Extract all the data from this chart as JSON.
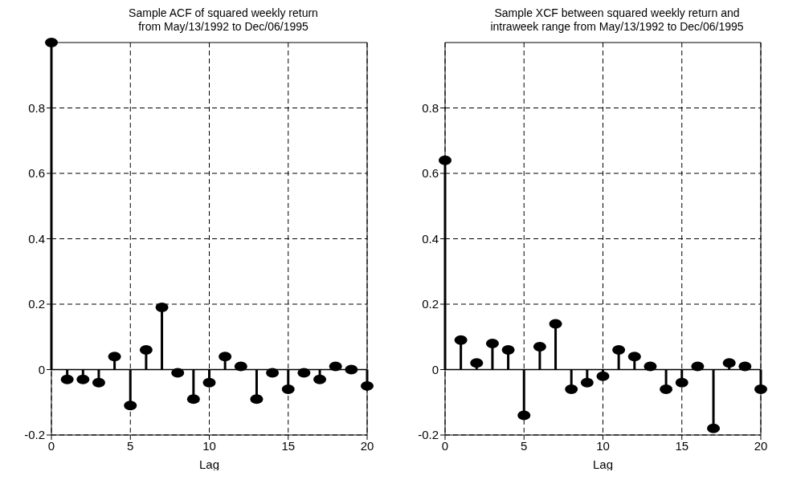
{
  "chart_data": [
    {
      "type": "lollipop",
      "title": "Sample ACF of squared weekly return\nfrom May/13/1992 to Dec/06/1995",
      "xlabel": "Lag",
      "x": [
        0,
        1,
        2,
        3,
        4,
        5,
        6,
        7,
        8,
        9,
        10,
        11,
        12,
        13,
        14,
        15,
        16,
        17,
        18,
        19,
        20
      ],
      "series": [
        {
          "color": "#000000",
          "values": [
            1.0,
            -0.03,
            -0.03,
            -0.04,
            0.04,
            -0.11,
            0.06,
            0.19,
            -0.01,
            -0.09,
            -0.04,
            0.04,
            0.01,
            -0.09,
            -0.01,
            -0.06,
            -0.01,
            -0.03,
            0.01,
            0.0,
            -0.05
          ]
        }
      ],
      "xlim": [
        0,
        20
      ],
      "xticks": [
        0,
        5,
        10,
        15,
        20
      ],
      "ylim": [
        -0.2,
        1
      ],
      "yticks": [
        -0.2,
        0,
        0.2,
        0.4,
        0.6,
        0.8
      ],
      "grid": true,
      "marker": "circle",
      "line_style": "solid",
      "ref_lines": [
        {
          "axis": "y",
          "value": 0,
          "color": "#000000"
        }
      ]
    },
    {
      "type": "lollipop",
      "title": "Sample XCF between squared weekly return and\nintraweek range from May/13/1992  to Dec/06/1995",
      "xlabel": "Lag",
      "x": [
        0,
        1,
        2,
        3,
        4,
        5,
        6,
        7,
        8,
        9,
        10,
        11,
        12,
        13,
        14,
        15,
        16,
        17,
        18,
        19,
        20
      ],
      "series": [
        {
          "color": "#000000",
          "values": [
            0.64,
            0.09,
            0.02,
            0.08,
            0.06,
            -0.14,
            0.07,
            0.14,
            -0.06,
            -0.04,
            -0.02,
            0.06,
            0.04,
            0.01,
            -0.06,
            -0.04,
            0.01,
            -0.18,
            0.02,
            0.01,
            -0.06
          ]
        }
      ],
      "xlim": [
        0,
        20
      ],
      "xticks": [
        0,
        5,
        10,
        15,
        20
      ],
      "ylim": [
        -0.2,
        1
      ],
      "yticks": [
        -0.2,
        0,
        0.2,
        0.4,
        0.6,
        0.8
      ],
      "grid": true,
      "marker": "circle",
      "line_style": "solid",
      "ref_lines": [
        {
          "axis": "y",
          "value": 0,
          "color": "#000000"
        }
      ]
    }
  ]
}
